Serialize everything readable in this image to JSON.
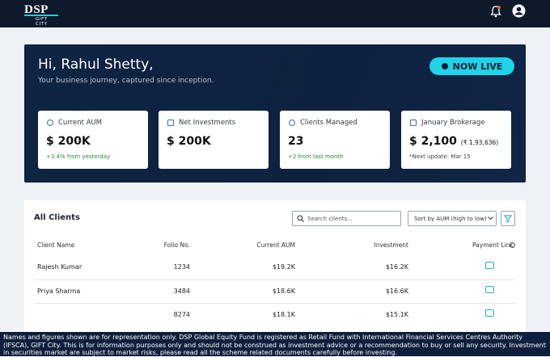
{
  "header": {
    "logo": "DSP",
    "logo_sub": "GIFT CITY"
  },
  "hero": {
    "greeting": "Hi, Rahul Shetty,",
    "tagline": "Your business journey, captured since inception.",
    "badge": "NOW LIVE"
  },
  "stats": [
    {
      "label": "Current AUM",
      "value": "$ 200K",
      "note": "+3.4% from yesterday"
    },
    {
      "label": "Net Investments",
      "value": "$ 200K"
    },
    {
      "label": "Clients Managed",
      "value": "23",
      "note": "+2 from last month"
    },
    {
      "label": "January Brokerage",
      "value": "$ 2,100",
      "value_extra": "(₹ 1,93,636)",
      "note": "*Next update: Mar 15"
    }
  ],
  "table": {
    "title": "All Clients",
    "search_placeholder": "Search clients...",
    "sort": "Sort by AUM (high to low)",
    "columns": [
      "Client Name",
      "Folio No.",
      "Current AUM",
      "Investment",
      "Payment Link"
    ],
    "rows": [
      {
        "name": "Rajesh Kumar",
        "folio": "1234",
        "aum": "$19.2K",
        "investment": "$16.2K"
      },
      {
        "name": "Priya Sharma",
        "folio": "3484",
        "aum": "$18.6K",
        "investment": "$16.6K"
      },
      {
        "folio": "8274",
        "aum": "$18.1K",
        "investment": "$15.1K"
      }
    ]
  },
  "footer": {
    "disclaimer": "Names and figures shown are for representation only. DSP Global Equity Fund is registered as Retail Fund with International Financial Services Centres Authority (IFSCA), GIFT City. This is for information purposes only and should not be construed as investment advice or a recommendation to buy or sell any security. Investment in securities market are subject to market risks, please read all the scheme related documents carefully before investing."
  }
}
